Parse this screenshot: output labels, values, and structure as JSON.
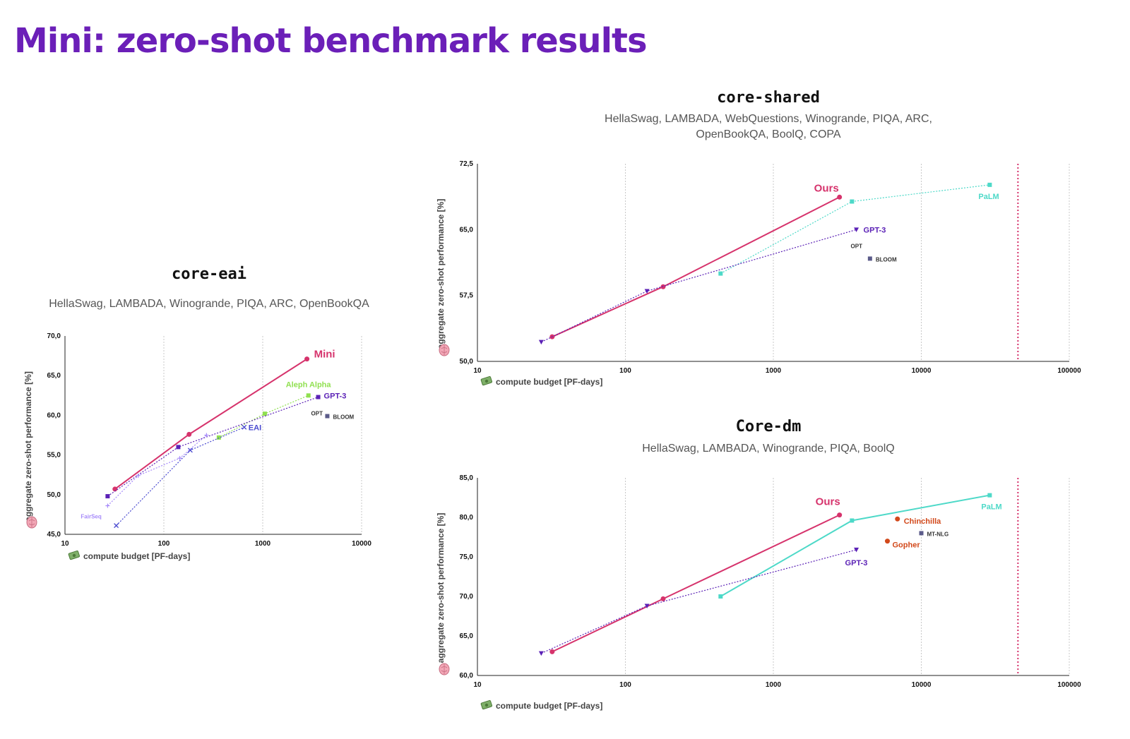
{
  "page": {
    "title": "Mini: zero-shot benchmark results"
  },
  "colors": {
    "title": "#6b1fb8",
    "ours": "#d6336c",
    "gpt3": "#5b21b6",
    "opt": "#5b5b8a",
    "palm": "#4dd9c8",
    "aleph": "#90e050",
    "eai": "#4a4ad0",
    "fairseq": "#a78bfa",
    "chinchilla": "#d2491b",
    "compute_limit": "#d6336c"
  },
  "icons": {
    "y_axis": "brain-icon",
    "x_axis": "money-icon"
  },
  "panels": {
    "eai": {
      "title": "core-eai",
      "subtitle": "HellaSwag, LAMBADA, Winogrande, PIQA, ARC, OpenBookQA"
    },
    "shared": {
      "title": "core-shared",
      "subtitle_line1": "HellaSwag, LAMBADA, WebQuestions, Winogrande, PIQA, ARC,",
      "subtitle_line2": "OpenBookQA, BoolQ, COPA"
    },
    "dm": {
      "title": "Core-dm",
      "subtitle": "HellaSwag, LAMBADA, Winogrande, PIQA, BoolQ"
    }
  },
  "chart_data": [
    {
      "id": "core-eai",
      "type": "line",
      "x_scale": "log",
      "xlim": [
        10,
        10000
      ],
      "ylim": [
        45,
        70
      ],
      "xticks": [
        "10",
        "100",
        "1000",
        "10000"
      ],
      "yticks": [
        "45,0",
        "50,0",
        "55,0",
        "60,0",
        "65,0",
        "70,0"
      ],
      "xlabel": "compute budget [PF-days]",
      "ylabel": "aggregate zero-shot performance [%]",
      "grid": "vertical",
      "series": [
        {
          "name": "Mini",
          "color": "#d6336c",
          "style": "solid",
          "marker": "circle",
          "label_at": "end",
          "x": [
            32,
            180,
            2800
          ],
          "y": [
            50.7,
            57.6,
            67.1
          ]
        },
        {
          "name": "Aleph Alpha",
          "color": "#90e050",
          "style": "dotted",
          "marker": "square",
          "label_at": "end",
          "x": [
            360,
            1050,
            2900
          ],
          "y": [
            57.2,
            60.2,
            62.5
          ]
        },
        {
          "name": "GPT-3",
          "color": "#5b21b6",
          "style": "dotted",
          "marker": "square",
          "label_at": "end",
          "x": [
            27,
            140,
            3640
          ],
          "y": [
            49.8,
            56.0,
            62.3
          ]
        },
        {
          "name": "EAI",
          "color": "#4a4ad0",
          "style": "dotted",
          "marker": "x",
          "label_at": "end",
          "x": [
            33,
            185,
            650
          ],
          "y": [
            46.1,
            55.6,
            58.5
          ]
        },
        {
          "name": "FairSeq",
          "color": "#a78bfa",
          "style": "dotted",
          "marker": "plus",
          "label_at": "start",
          "x": [
            27,
            55,
            145,
            270
          ],
          "y": [
            48.6,
            52.4,
            54.6,
            57.5
          ]
        },
        {
          "name": "OPT",
          "color": "#5b5b8a",
          "style": "none",
          "marker": "none",
          "label_at": "end",
          "x": [
            3640
          ],
          "y": [
            61.4
          ]
        },
        {
          "name": "BLOOM",
          "color": "#5b5b8a",
          "style": "none",
          "marker": "square",
          "label_at": "end",
          "x": [
            4500
          ],
          "y": [
            59.9
          ]
        }
      ]
    },
    {
      "id": "core-shared",
      "type": "line",
      "x_scale": "log",
      "xlim": [
        10,
        100000
      ],
      "ylim": [
        50,
        72.5
      ],
      "xticks": [
        "10",
        "100",
        "1000",
        "10000",
        "100000"
      ],
      "yticks": [
        "50,0",
        "57,5",
        "65,0",
        "72,5"
      ],
      "xlabel": "compute budget [PF-days]",
      "ylabel": "aggregate zero-shot performance [%]",
      "grid": "vertical",
      "compute_limit_x": 45000,
      "series": [
        {
          "name": "Ours",
          "color": "#d6336c",
          "style": "solid",
          "marker": "circle",
          "label_at": "end",
          "x": [
            32,
            180,
            2800
          ],
          "y": [
            52.8,
            58.5,
            68.7
          ]
        },
        {
          "name": "PaLM",
          "color": "#4dd9c8",
          "style": "dotted",
          "marker": "square",
          "label_at": "end",
          "x": [
            440,
            3400,
            29000
          ],
          "y": [
            60.0,
            68.2,
            70.1
          ]
        },
        {
          "name": "GPT-3",
          "color": "#5b21b6",
          "style": "dotted",
          "marker": "triangle",
          "label_at": "end",
          "x": [
            27,
            140,
            3640
          ],
          "y": [
            52.2,
            58.0,
            65.0
          ]
        },
        {
          "name": "OPT",
          "color": "#5b5b8a",
          "style": "none",
          "marker": "none",
          "label_at": "end",
          "x": [
            3640
          ],
          "y": [
            64.1
          ]
        },
        {
          "name": "BLOOM",
          "color": "#5b5b8a",
          "style": "none",
          "marker": "square",
          "label_at": "end",
          "x": [
            4500
          ],
          "y": [
            61.7
          ]
        }
      ]
    },
    {
      "id": "core-dm",
      "type": "line",
      "x_scale": "log",
      "xlim": [
        10,
        100000
      ],
      "ylim": [
        60,
        85
      ],
      "xticks": [
        "10",
        "100",
        "1000",
        "10000",
        "100000"
      ],
      "yticks": [
        "60,0",
        "65,0",
        "70,0",
        "75,0",
        "80,0",
        "85,0"
      ],
      "xlabel": "compute budget [PF-days]",
      "ylabel": "aggregate zero-shot performance [%]",
      "grid": "vertical",
      "compute_limit_x": 45000,
      "series": [
        {
          "name": "Ours",
          "color": "#d6336c",
          "style": "solid",
          "marker": "circle",
          "label_at": "end",
          "x": [
            32,
            180,
            2800
          ],
          "y": [
            63.0,
            69.7,
            80.3
          ]
        },
        {
          "name": "PaLM",
          "color": "#4dd9c8",
          "style": "solid",
          "marker": "square",
          "label_at": "end",
          "x": [
            440,
            3400,
            29000
          ],
          "y": [
            70.0,
            79.6,
            82.8
          ]
        },
        {
          "name": "GPT-3",
          "color": "#5b21b6",
          "style": "dotted",
          "marker": "triangle",
          "label_at": "end",
          "x": [
            27,
            140,
            3640
          ],
          "y": [
            62.8,
            68.8,
            75.9
          ]
        },
        {
          "name": "Chinchilla",
          "color": "#d2491b",
          "style": "none",
          "marker": "circle",
          "label_at": "end",
          "x": [
            6900
          ],
          "y": [
            79.8
          ]
        },
        {
          "name": "Gopher",
          "color": "#d2491b",
          "style": "none",
          "marker": "circle",
          "label_at": "end",
          "x": [
            5900
          ],
          "y": [
            77.0
          ]
        },
        {
          "name": "MT-NLG",
          "color": "#5b5b8a",
          "style": "none",
          "marker": "square",
          "label_at": "end",
          "x": [
            10000
          ],
          "y": [
            78.0
          ]
        }
      ]
    }
  ]
}
